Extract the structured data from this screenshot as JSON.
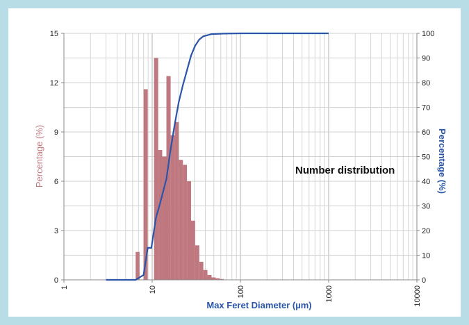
{
  "chart_data": {
    "type": "bar",
    "annotation": "Number distribution",
    "xlabel": "Max Feret Diameter (µm)",
    "ylabel": "Percentage (%)",
    "y2label": "Percentage (%)",
    "x_scale": "log",
    "xlim": [
      1,
      10000
    ],
    "x_ticks": [
      "1",
      "10",
      "100",
      "1000",
      "10000"
    ],
    "ylim": [
      0,
      15
    ],
    "y_ticks": [
      "0",
      "3",
      "6",
      "9",
      "12",
      "15"
    ],
    "y2lim": [
      0,
      100
    ],
    "y2_ticks": [
      "0",
      "10",
      "20",
      "30",
      "40",
      "50",
      "60",
      "70",
      "80",
      "90",
      "100"
    ],
    "grid": true,
    "colors": {
      "bars": "#c07880",
      "line": "#2a55a8",
      "ylabel": "#c07880",
      "y2label": "#2a55a8",
      "xlabel": "#2a55a8",
      "background": "#b8dde6"
    },
    "bars": [
      {
        "x0": 6.5,
        "x1": 7.2,
        "value": 1.7
      },
      {
        "x0": 8.0,
        "x1": 8.9,
        "value": 11.6
      },
      {
        "x0": 10.5,
        "x1": 11.7,
        "value": 13.5
      },
      {
        "x0": 11.7,
        "x1": 13.0,
        "value": 7.9
      },
      {
        "x0": 13.0,
        "x1": 14.5,
        "value": 7.5
      },
      {
        "x0": 14.5,
        "x1": 16.2,
        "value": 12.4
      },
      {
        "x0": 16.2,
        "x1": 18.0,
        "value": 8.8
      },
      {
        "x0": 18.0,
        "x1": 20.0,
        "value": 9.6
      },
      {
        "x0": 20.0,
        "x1": 22.3,
        "value": 7.3
      },
      {
        "x0": 22.3,
        "x1": 24.8,
        "value": 7.0
      },
      {
        "x0": 24.8,
        "x1": 27.6,
        "value": 6.0
      },
      {
        "x0": 27.6,
        "x1": 30.7,
        "value": 3.6
      },
      {
        "x0": 30.7,
        "x1": 34.2,
        "value": 2.1
      },
      {
        "x0": 34.2,
        "x1": 38.0,
        "value": 1.1
      },
      {
        "x0": 38.0,
        "x1": 42.3,
        "value": 0.6
      },
      {
        "x0": 42.3,
        "x1": 47.1,
        "value": 0.3
      },
      {
        "x0": 47.1,
        "x1": 52.4,
        "value": 0.15
      },
      {
        "x0": 52.4,
        "x1": 58.3,
        "value": 0.1
      },
      {
        "x0": 58.3,
        "x1": 64.8,
        "value": 0.05
      }
    ],
    "cumulative": [
      [
        3,
        0
      ],
      [
        6.5,
        0
      ],
      [
        7.2,
        1
      ],
      [
        8,
        2
      ],
      [
        8.9,
        13
      ],
      [
        9.8,
        13
      ],
      [
        11,
        25
      ],
      [
        12.5,
        32
      ],
      [
        14.5,
        41
      ],
      [
        16.2,
        53
      ],
      [
        18,
        63
      ],
      [
        20,
        72
      ],
      [
        22.3,
        79
      ],
      [
        24.8,
        85
      ],
      [
        27.6,
        91
      ],
      [
        30.7,
        95
      ],
      [
        34.2,
        97.5
      ],
      [
        38,
        98.8
      ],
      [
        47,
        99.7
      ],
      [
        65,
        99.9
      ],
      [
        100,
        100
      ],
      [
        1000,
        100
      ]
    ]
  }
}
